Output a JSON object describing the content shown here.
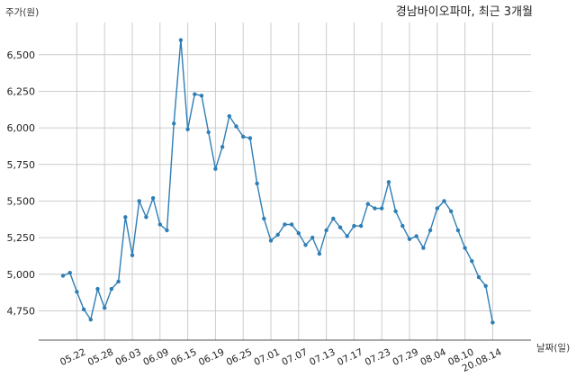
{
  "chart_data": {
    "type": "line",
    "title": "경남바이오파마, 최근 3개월",
    "ylabel": "주가(원)",
    "xlabel": "날짜(일)",
    "ylim": [
      4550,
      6720
    ],
    "y_ticks": [
      4750,
      5000,
      5250,
      5500,
      5750,
      6000,
      6250,
      6500
    ],
    "y_tick_labels": [
      "4,750",
      "5,000",
      "5,250",
      "5,500",
      "5,750",
      "6,000",
      "6,250",
      "6,500"
    ],
    "grid": true,
    "color": "#2e7eb5",
    "x_tick_labels": [
      "05.22",
      "05.28",
      "06.03",
      "06.09",
      "06.15",
      "06.19",
      "06.25",
      "07.01",
      "07.07",
      "07.13",
      "07.17",
      "07.23",
      "07.29",
      "08.04",
      "08.10",
      "20.08.14"
    ],
    "x_tick_index": [
      2,
      6,
      10,
      14,
      18,
      22,
      26,
      30,
      34,
      38,
      42,
      46,
      50,
      54,
      58,
      62
    ],
    "series": [
      {
        "values": [
          4990,
          5010,
          4880,
          4760,
          4690,
          4900,
          4770,
          4900,
          4950,
          5390,
          5130,
          5500,
          5390,
          5520,
          5340,
          5300,
          6030,
          6600,
          5990,
          6230,
          6220,
          5970,
          5720,
          5870,
          6080,
          6010,
          5940,
          5930,
          5620,
          5380,
          5230,
          5270,
          5340,
          5340,
          5280,
          5200,
          5250,
          5140,
          5300,
          5380,
          5320,
          5260,
          5330,
          5330,
          5480,
          5450,
          5450,
          5630,
          5430,
          5330,
          5240,
          5260,
          5180,
          5300,
          5450,
          5500,
          5430,
          5300,
          5180,
          5090,
          4980,
          4920,
          4670
        ]
      }
    ]
  }
}
